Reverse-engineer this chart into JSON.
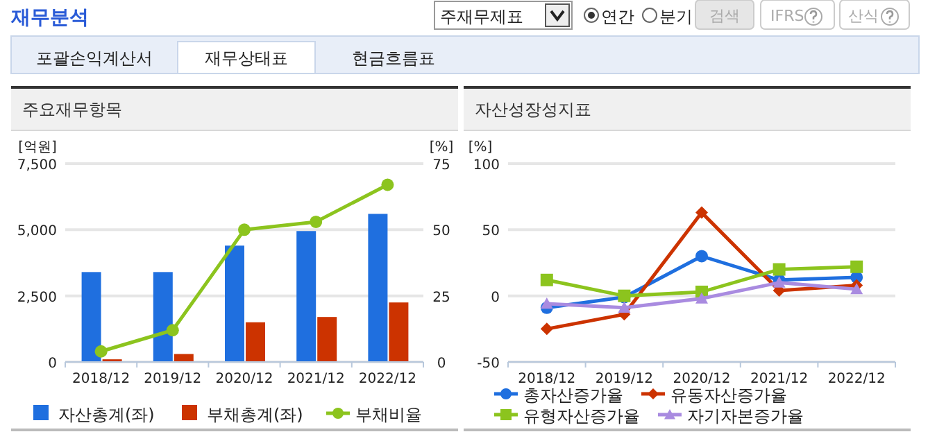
{
  "chart_data": [
    {
      "type": "other",
      "title": "재무분석",
      "annotations": [
        "주재무제표",
        "연간",
        "분기",
        "검색",
        "IFRS",
        "산식",
        "포괄손익계산서",
        "재무상태표",
        "현금흐름표"
      ]
    },
    {
      "type": "bar",
      "title": "주요재무항목",
      "categories": [
        "2018/12",
        "2019/12",
        "2020/12",
        "2021/12",
        "2022/12"
      ],
      "ylabel": "[억원]",
      "y2label": "[%]",
      "ylim": [
        0,
        7500
      ],
      "yticks": [
        0,
        {
          "value": 2500,
          "label": "2,500"
        },
        {
          "value": 5000,
          "label": "5,000"
        },
        {
          "value": 7500,
          "label": "7,500"
        }
      ],
      "y2lim": [
        0,
        75
      ],
      "y2ticks": [
        0,
        25,
        50,
        75
      ],
      "grid": "y",
      "legend": "bottom",
      "series": [
        {
          "name": "자산총계(좌)",
          "type": "bar",
          "color": "#1f6fdf",
          "values": [
            3400,
            3400,
            4400,
            4950,
            5600
          ]
        },
        {
          "name": "부채총계(좌)",
          "type": "bar",
          "color": "#cc3300",
          "values": [
            100,
            300,
            1500,
            1700,
            2250
          ]
        },
        {
          "name": "부채비율",
          "type": "line",
          "axis": "y2",
          "marker": "circle",
          "color": "#8cc41e",
          "values": [
            4,
            12,
            50,
            53,
            67
          ]
        }
      ]
    },
    {
      "type": "line",
      "title": "자산성장성지표",
      "categories": [
        "2018/12",
        "2019/12",
        "2020/12",
        "2021/12",
        "2022/12"
      ],
      "ylabel": "[%]",
      "ylim": [
        -50,
        100
      ],
      "yticks": [
        -50,
        0,
        50,
        100
      ],
      "grid": "y",
      "legend": "bottom",
      "line_style": "solid",
      "series": [
        {
          "name": "총자산증가율",
          "marker": "circle",
          "color": "#1f6fdf",
          "values": [
            -9,
            -1,
            30,
            12,
            14
          ]
        },
        {
          "name": "유동자산증가율",
          "marker": "diamond",
          "color": "#cc3300",
          "values": [
            -25,
            -14,
            63,
            4,
            8
          ]
        },
        {
          "name": "유형자산증가율",
          "marker": "square",
          "color": "#8cc41e",
          "values": [
            12,
            0,
            3,
            20,
            22
          ]
        },
        {
          "name": "자기자본증가율",
          "marker": "triangle",
          "color": "#a98be0",
          "values": [
            -6,
            -9,
            -2,
            10,
            5
          ]
        }
      ]
    }
  ]
}
